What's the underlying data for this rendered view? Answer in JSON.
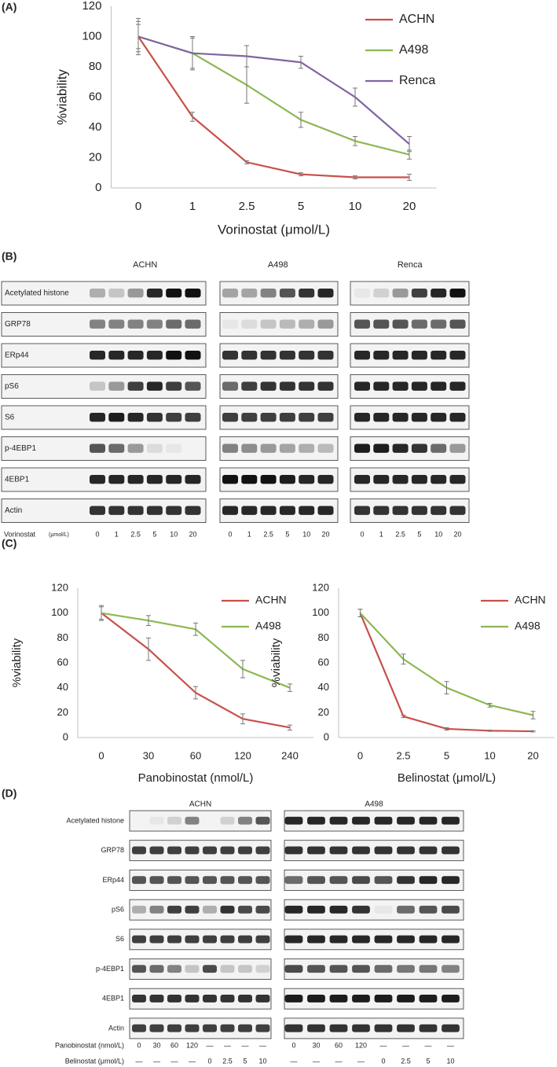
{
  "chart_data": [
    {
      "type": "line",
      "panel_label": "(A)",
      "x_label": "Vorinostat (μmol/L)",
      "y_label": "%viability",
      "categories": [
        "0",
        "1",
        "2.5",
        "5",
        "10",
        "20"
      ],
      "series": [
        {
          "name": "ACHN",
          "color": "#c8504b",
          "values": [
            100,
            47,
            17,
            9,
            7,
            7
          ],
          "errors": [
            12,
            3,
            1,
            1,
            1,
            2
          ]
        },
        {
          "name": "A498",
          "color": "#8db854",
          "values": [
            100,
            89,
            68,
            45,
            31,
            22
          ],
          "errors": [
            8,
            10,
            12,
            5,
            3,
            3
          ]
        },
        {
          "name": "Renca",
          "color": "#8064a2",
          "values": [
            100,
            89,
            87,
            83,
            60,
            29
          ],
          "errors": [
            10,
            11,
            7,
            4,
            6,
            5
          ]
        }
      ],
      "ylim": [
        0,
        120
      ],
      "yticks": [
        0,
        20,
        40,
        60,
        80,
        100,
        120
      ],
      "legend": "top-right",
      "grid": false
    },
    {
      "type": "line",
      "panel_label": "(C)",
      "x_label": "Panobinostat (nmol/L)",
      "y_label": "%viability",
      "categories": [
        "0",
        "30",
        "60",
        "120",
        "240"
      ],
      "series": [
        {
          "name": "ACHN",
          "color": "#c8504b",
          "values": [
            100,
            71,
            36,
            15,
            8
          ],
          "errors": [
            5,
            9,
            5,
            4,
            2
          ]
        },
        {
          "name": "A498",
          "color": "#8db854",
          "values": [
            100,
            94,
            87,
            55,
            40
          ],
          "errors": [
            6,
            4,
            5,
            7,
            3
          ]
        }
      ],
      "ylim": [
        0,
        120
      ],
      "yticks": [
        0,
        20,
        40,
        60,
        80,
        100,
        120
      ],
      "legend": "top-right",
      "grid": false
    },
    {
      "type": "line",
      "x_label": "Belinostat (μmol/L)",
      "y_label": "%viability",
      "categories": [
        "0",
        "2.5",
        "5",
        "10",
        "20"
      ],
      "series": [
        {
          "name": "ACHN",
          "color": "#c8504b",
          "values": [
            100,
            17,
            7,
            5.5,
            5
          ],
          "errors": [
            3,
            1,
            1,
            0.5,
            0.5
          ]
        },
        {
          "name": "A498",
          "color": "#8db854",
          "values": [
            100,
            63,
            40,
            26,
            18
          ],
          "errors": [
            3,
            4,
            5,
            1.5,
            3
          ]
        }
      ],
      "ylim": [
        0,
        120
      ],
      "yticks": [
        0,
        20,
        40,
        60,
        80,
        100,
        120
      ],
      "legend": "top-right",
      "grid": false
    }
  ],
  "blot_b": {
    "panel_label": "(B)",
    "columns": [
      "ACHN",
      "A498",
      "Renca"
    ],
    "rows": [
      "Acetylated histone",
      "GRP78",
      "ERp44",
      "pS6",
      "S6",
      "p-4EBP1",
      "4EBP1",
      "Actin"
    ],
    "treatment": "Vorinostat",
    "unit": "(μmol/L)",
    "lanes": [
      "0",
      "1",
      "2.5",
      "5",
      "10",
      "20"
    ]
  },
  "blot_d": {
    "panel_label": "(D)",
    "columns": [
      "ACHN",
      "A498"
    ],
    "rows": [
      "Acetylated histone",
      "GRP78",
      "ERp44",
      "pS6",
      "S6",
      "p-4EBP1",
      "4EBP1",
      "Actin"
    ],
    "treatments": [
      {
        "label": "Panobinostat (nmol/L)",
        "lanes": [
          "0",
          "30",
          "60",
          "120",
          "—",
          "—",
          "—",
          "—"
        ]
      },
      {
        "label": "Belinostat (μmol/L)",
        "lanes": [
          "—",
          "—",
          "—",
          "—",
          "0",
          "2.5",
          "5",
          "10"
        ]
      }
    ]
  }
}
